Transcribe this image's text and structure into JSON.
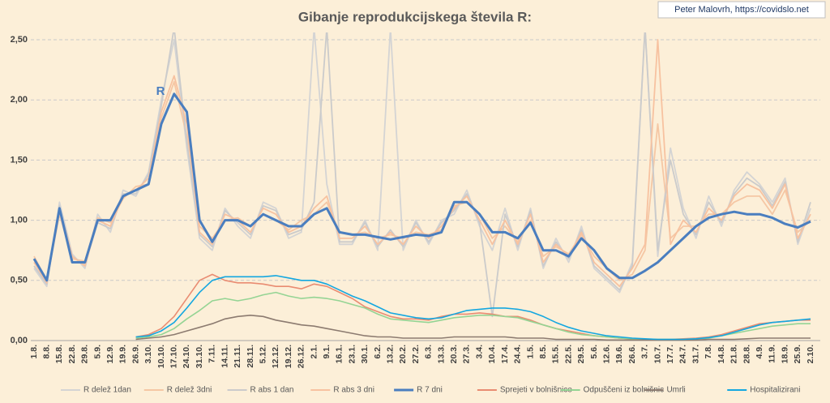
{
  "chart_data": {
    "type": "line",
    "title": "Gibanje reprodukcijskega števila R:",
    "source": "Peter Malovrh, https://covidslo.net",
    "annotation": "R",
    "categories": [
      "1.8.",
      "8.8.",
      "15.8.",
      "22.8.",
      "29.8.",
      "5.9.",
      "12.9.",
      "19.9.",
      "26.9.",
      "3.10.",
      "10.10.",
      "17.10.",
      "24.10.",
      "31.10.",
      "7.11.",
      "14.11.",
      "21.11.",
      "28.11.",
      "5.12.",
      "12.12.",
      "19.12.",
      "26.12.",
      "2.1.",
      "9.1.",
      "16.1.",
      "23.1.",
      "30.1.",
      "6.2.",
      "13.2.",
      "20.2.",
      "27.2.",
      "6.3.",
      "13.3.",
      "20.3.",
      "27.3.",
      "3.4.",
      "10.4.",
      "17.4.",
      "24.4.",
      "1.5.",
      "8.5.",
      "15.5.",
      "22.5.",
      "29.5.",
      "5.6.",
      "12.6.",
      "19.6.",
      "26.6.",
      "3.7.",
      "10.7.",
      "17.7.",
      "24.7.",
      "31.7.",
      "7.8.",
      "14.8.",
      "21.8.",
      "28.8.",
      "4.9.",
      "11.9.",
      "18.9.",
      "25.9.",
      "2.10."
    ],
    "ylim": [
      0,
      2.5
    ],
    "yticks": [
      {
        "value": 0,
        "label": "0,00"
      },
      {
        "value": 0.5,
        "label": "0,50"
      },
      {
        "value": 1,
        "label": "1,00"
      },
      {
        "value": 1.5,
        "label": "1,50"
      },
      {
        "value": 2,
        "label": "2,00"
      },
      {
        "value": 2.5,
        "label": "2,50"
      }
    ],
    "grid": true,
    "legend": "bottom",
    "series": [
      {
        "name": "R delež 1dan",
        "color": "#d4d4d4",
        "values": [
          0.6,
          0.45,
          1.15,
          0.72,
          0.6,
          1.05,
          0.9,
          1.25,
          1.2,
          1.4,
          2.0,
          2.5,
          1.6,
          0.85,
          0.75,
          1.1,
          0.95,
          0.85,
          1.15,
          1.1,
          0.85,
          0.9,
          2.6,
          1.3,
          0.8,
          0.8,
          1.0,
          0.75,
          2.6,
          0.75,
          1.0,
          0.8,
          1.0,
          1.05,
          1.25,
          0.95,
          0.75,
          1.1,
          0.75,
          1.1,
          0.6,
          0.85,
          0.65,
          0.95,
          0.6,
          0.5,
          0.4,
          0.65,
          2.6,
          0.7,
          1.6,
          1.1,
          0.85,
          1.2,
          0.95,
          1.25,
          1.4,
          1.3,
          1.15,
          1.35,
          0.8,
          1.1
        ]
      },
      {
        "name": "R delež 3dni",
        "color": "#f5c7a4",
        "values": [
          0.7,
          0.5,
          1.05,
          0.68,
          0.66,
          1.02,
          0.98,
          1.18,
          1.28,
          1.3,
          1.85,
          2.15,
          1.7,
          0.95,
          0.85,
          1.0,
          1.02,
          0.95,
          1.05,
          1.0,
          0.92,
          1.0,
          1.05,
          1.15,
          0.9,
          0.88,
          0.9,
          0.85,
          0.88,
          0.85,
          0.9,
          0.88,
          0.92,
          1.12,
          1.15,
          1.05,
          0.85,
          0.95,
          0.82,
          1.0,
          0.7,
          0.78,
          0.72,
          0.88,
          0.7,
          0.6,
          0.5,
          0.55,
          0.75,
          1.8,
          0.85,
          0.95,
          0.95,
          1.05,
          1.05,
          1.15,
          1.2,
          1.2,
          1.05,
          1.25,
          0.9,
          1.0
        ]
      },
      {
        "name": "R abs 1 dan",
        "color": "#cbcbcb",
        "values": [
          0.62,
          0.47,
          1.12,
          0.7,
          0.63,
          0.98,
          0.93,
          1.22,
          1.22,
          1.38,
          1.95,
          2.6,
          1.65,
          0.88,
          0.78,
          1.08,
          0.98,
          0.88,
          1.12,
          1.08,
          0.88,
          0.92,
          1.15,
          2.6,
          0.82,
          0.82,
          0.98,
          0.78,
          0.92,
          0.78,
          0.98,
          0.82,
          0.98,
          1.08,
          1.22,
          0.98,
          0.2,
          1.05,
          0.78,
          1.08,
          0.62,
          0.82,
          0.68,
          0.92,
          0.62,
          0.52,
          0.42,
          0.62,
          2.6,
          0.75,
          1.5,
          1.05,
          0.88,
          1.15,
          0.98,
          1.22,
          1.35,
          1.28,
          1.12,
          1.32,
          0.82,
          1.15
        ]
      },
      {
        "name": "R abs 3 dni",
        "color": "#f7c2a0",
        "values": [
          0.65,
          0.48,
          1.1,
          0.7,
          0.62,
          1.0,
          0.95,
          1.2,
          1.25,
          1.35,
          1.9,
          2.2,
          1.8,
          0.9,
          0.8,
          1.05,
          1.0,
          0.9,
          1.1,
          1.05,
          0.9,
          0.95,
          1.1,
          1.2,
          0.85,
          0.85,
          0.95,
          0.8,
          0.9,
          0.8,
          0.95,
          0.85,
          0.95,
          1.1,
          1.2,
          1.0,
          0.8,
          1.0,
          0.8,
          1.05,
          0.65,
          0.8,
          0.7,
          0.9,
          0.65,
          0.55,
          0.45,
          0.6,
          0.8,
          2.5,
          0.8,
          1.0,
          0.9,
          1.1,
          1.0,
          1.2,
          1.3,
          1.25,
          1.1,
          1.3,
          0.85,
          1.05
        ]
      },
      {
        "name": "R 7 dni",
        "color": "#4a7ebf",
        "values": [
          0.68,
          0.5,
          1.1,
          0.65,
          0.65,
          1.0,
          1.0,
          1.2,
          1.25,
          1.3,
          1.8,
          2.05,
          1.9,
          1.0,
          0.82,
          1.0,
          1.0,
          0.95,
          1.05,
          1.0,
          0.95,
          0.95,
          1.05,
          1.1,
          0.9,
          0.88,
          0.88,
          0.86,
          0.84,
          0.86,
          0.88,
          0.87,
          0.9,
          1.15,
          1.15,
          1.05,
          0.9,
          0.9,
          0.85,
          0.98,
          0.75,
          0.75,
          0.7,
          0.85,
          0.75,
          0.6,
          0.52,
          0.52,
          0.58,
          0.65,
          0.75,
          0.85,
          0.95,
          1.02,
          1.05,
          1.07,
          1.05,
          1.05,
          1.02,
          0.97,
          0.94,
          0.99
        ]
      },
      {
        "name": "Sprejeti v bolnišnice",
        "color": "#e98c72",
        "values": [
          null,
          null,
          null,
          null,
          null,
          null,
          null,
          null,
          0.03,
          0.05,
          0.1,
          0.2,
          0.35,
          0.5,
          0.55,
          0.5,
          0.48,
          0.48,
          0.47,
          0.45,
          0.45,
          0.43,
          0.47,
          0.45,
          0.4,
          0.35,
          0.28,
          0.24,
          0.2,
          0.18,
          0.18,
          0.17,
          0.2,
          0.22,
          0.22,
          0.23,
          0.22,
          0.2,
          0.2,
          0.17,
          0.13,
          0.1,
          0.08,
          0.06,
          0.04,
          0.03,
          0.02,
          0.015,
          0.01,
          0.01,
          0.01,
          0.015,
          0.02,
          0.03,
          0.05,
          0.08,
          0.11,
          0.14,
          0.15,
          0.16,
          0.17,
          0.17
        ]
      },
      {
        "name": "Odpuščeni iz bolnišnic",
        "color": "#95d494",
        "values": [
          null,
          null,
          null,
          null,
          null,
          null,
          null,
          null,
          0.02,
          0.03,
          0.05,
          0.1,
          0.18,
          0.25,
          0.33,
          0.35,
          0.33,
          0.35,
          0.38,
          0.4,
          0.37,
          0.35,
          0.36,
          0.35,
          0.33,
          0.3,
          0.27,
          0.22,
          0.18,
          0.17,
          0.16,
          0.15,
          0.17,
          0.19,
          0.2,
          0.21,
          0.21,
          0.2,
          0.19,
          0.16,
          0.13,
          0.1,
          0.07,
          0.05,
          0.04,
          0.03,
          0.02,
          0.015,
          0.01,
          0.01,
          0.01,
          0.01,
          0.015,
          0.02,
          0.04,
          0.06,
          0.08,
          0.1,
          0.12,
          0.13,
          0.14,
          0.14
        ]
      },
      {
        "name": "Umrli",
        "color": "#8c7b70",
        "values": [
          null,
          null,
          null,
          null,
          null,
          null,
          null,
          null,
          0.01,
          0.02,
          0.03,
          0.05,
          0.08,
          0.11,
          0.14,
          0.18,
          0.2,
          0.21,
          0.2,
          0.17,
          0.15,
          0.13,
          0.12,
          0.1,
          0.08,
          0.06,
          0.04,
          0.03,
          0.03,
          0.02,
          0.02,
          0.02,
          0.02,
          0.03,
          0.03,
          0.03,
          0.03,
          0.03,
          0.02,
          0.02,
          0.02,
          0.01,
          0.01,
          0.01,
          0.01,
          0.005,
          0.005,
          0.005,
          0.005,
          0.005,
          0.005,
          0.005,
          0.005,
          0.01,
          0.01,
          0.01,
          0.015,
          0.02,
          0.02,
          0.02,
          0.02,
          0.02
        ]
      },
      {
        "name": "Hospitalizirani",
        "color": "#14a7e0",
        "values": [
          null,
          null,
          null,
          null,
          null,
          null,
          null,
          null,
          0.03,
          0.04,
          0.08,
          0.15,
          0.27,
          0.4,
          0.5,
          0.53,
          0.53,
          0.53,
          0.53,
          0.54,
          0.52,
          0.5,
          0.5,
          0.47,
          0.42,
          0.37,
          0.33,
          0.28,
          0.23,
          0.21,
          0.19,
          0.18,
          0.19,
          0.22,
          0.25,
          0.26,
          0.27,
          0.27,
          0.26,
          0.24,
          0.2,
          0.15,
          0.11,
          0.08,
          0.06,
          0.04,
          0.03,
          0.02,
          0.015,
          0.01,
          0.01,
          0.01,
          0.015,
          0.025,
          0.04,
          0.07,
          0.1,
          0.13,
          0.15,
          0.16,
          0.17,
          0.18
        ]
      }
    ]
  }
}
